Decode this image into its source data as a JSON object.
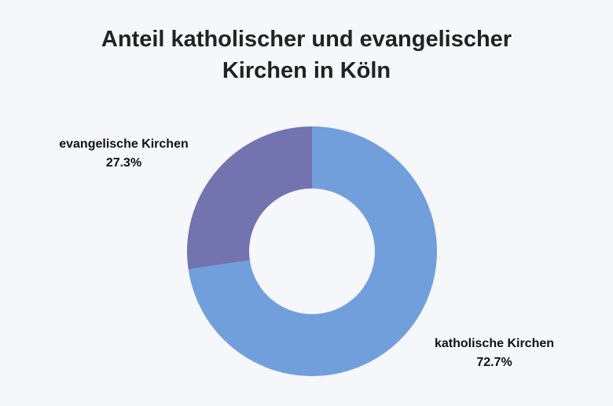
{
  "chart_data": {
    "type": "pie",
    "donut": true,
    "title_lines": [
      "Anteil katholischer und evangelischer",
      "Kirchen in Köln"
    ],
    "categories": [
      "katholische Kirchen",
      "evangelische Kirchen"
    ],
    "values": [
      72.7,
      27.3
    ],
    "value_labels": [
      "72.7%",
      "27.3%"
    ],
    "unit": "%",
    "colors": [
      "#719fdc",
      "#7373b0"
    ],
    "legend": "none",
    "start_angle_deg": 0,
    "direction": "clockwise"
  },
  "background": "#f6f7fb"
}
